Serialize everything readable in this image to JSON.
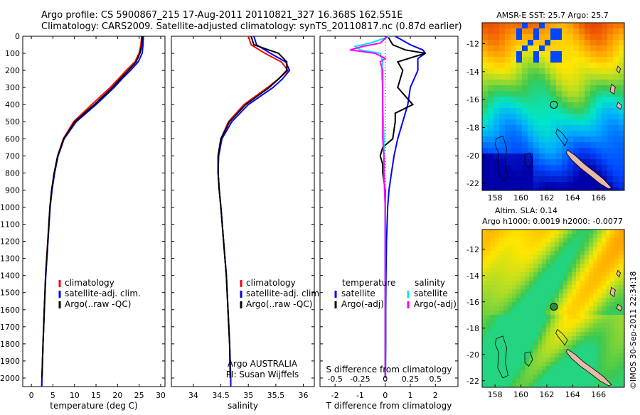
{
  "header": {
    "line1": "Argo profile: CS 5900867_215 17-Aug-2011 20110821_327 16.368S 162.551E",
    "line2": "Climatology: CARS2009. Satellite-adjusted climatology: synTS_20110817.nc (0.87d earlier)"
  },
  "chart_data": [
    {
      "type": "line",
      "name": "temperature-profile",
      "xlabel": "temperature (deg C)",
      "ylabel": "depth",
      "xlim": [
        -2,
        31
      ],
      "ylim": [
        2050,
        0
      ],
      "xticks": [
        0,
        5,
        10,
        15,
        20,
        25,
        30
      ],
      "yticks": [
        0,
        100,
        200,
        300,
        400,
        500,
        600,
        700,
        800,
        900,
        1000,
        1100,
        1200,
        1300,
        1400,
        1500,
        1600,
        1700,
        1800,
        1900,
        2000
      ],
      "legend": [
        "climatology",
        "satellite-adj. clim.",
        "Argo(..raw -QC)"
      ],
      "series": [
        {
          "name": "climatology",
          "color": "#ff0000",
          "depth": [
            0,
            50,
            100,
            150,
            200,
            250,
            300,
            400,
            500,
            600,
            700,
            800,
            900,
            1000,
            1200,
            1400,
            1600,
            1800,
            2000,
            2050
          ],
          "values": [
            25.6,
            25.4,
            25.0,
            24.0,
            22.0,
            20.2,
            18.3,
            14.0,
            9.8,
            7.4,
            6.1,
            5.3,
            4.7,
            4.3,
            3.8,
            3.3,
            3.0,
            2.7,
            2.45,
            2.4
          ]
        },
        {
          "name": "satellite-adj. clim.",
          "color": "#0000ff",
          "depth": [
            0,
            50,
            100,
            150,
            200,
            250,
            300,
            400,
            500,
            600,
            700,
            800,
            900,
            1000,
            1200,
            1400,
            1600,
            1800,
            2000,
            2050
          ],
          "values": [
            26.0,
            25.9,
            25.7,
            24.8,
            23.0,
            21.0,
            19.2,
            15.0,
            10.4,
            7.6,
            6.2,
            5.4,
            4.8,
            4.35,
            3.85,
            3.35,
            3.0,
            2.7,
            2.45,
            2.4
          ]
        },
        {
          "name": "Argo(..raw -QC)",
          "color": "#000000",
          "depth": [
            0,
            50,
            100,
            150,
            200,
            250,
            300,
            400,
            500,
            600,
            700,
            800,
            900,
            1000,
            1200,
            1400,
            1600,
            1800,
            2000
          ],
          "values": [
            25.7,
            25.6,
            25.2,
            24.3,
            22.5,
            20.6,
            18.8,
            14.6,
            10.1,
            7.5,
            6.1,
            5.3,
            4.7,
            4.3,
            3.8,
            3.3,
            3.0,
            2.7,
            2.45
          ]
        }
      ]
    },
    {
      "type": "line",
      "name": "salinity-profile",
      "xlabel": "salinity",
      "xlim": [
        33.6,
        36.2
      ],
      "ylim": [
        2050,
        0
      ],
      "xticks": [
        34,
        34.5,
        35,
        35.5,
        36
      ],
      "legend": [
        "climatology",
        "satellite-adj. clim.",
        "Argo(..raw -QC)"
      ],
      "annotation": [
        "Argo AUSTRALIA",
        "PI: Susan Wijffels"
      ],
      "series": [
        {
          "name": "climatology",
          "color": "#ff0000",
          "depth": [
            0,
            50,
            100,
            150,
            200,
            250,
            300,
            400,
            500,
            600,
            700,
            800,
            900,
            1000,
            1200,
            1400,
            1600,
            1800,
            2000,
            2050
          ],
          "values": [
            35.0,
            35.05,
            35.3,
            35.6,
            35.72,
            35.55,
            35.35,
            34.92,
            34.64,
            34.5,
            34.45,
            34.45,
            34.47,
            34.5,
            34.55,
            34.6,
            34.63,
            34.66,
            34.68,
            34.68
          ]
        },
        {
          "name": "satellite-adj. clim.",
          "color": "#0000ff",
          "depth": [
            0,
            50,
            100,
            150,
            200,
            250,
            300,
            400,
            500,
            600,
            700,
            800,
            900,
            1000,
            1200,
            1400,
            1600,
            1800,
            2000,
            2050
          ],
          "values": [
            35.1,
            35.15,
            35.4,
            35.68,
            35.75,
            35.62,
            35.45,
            35.0,
            34.7,
            34.52,
            34.46,
            34.45,
            34.47,
            34.5,
            34.55,
            34.6,
            34.63,
            34.66,
            34.68,
            34.68
          ]
        },
        {
          "name": "Argo(..raw -QC)",
          "color": "#000000",
          "depth": [
            0,
            50,
            100,
            150,
            200,
            250,
            300,
            400,
            500,
            600,
            700,
            800,
            900,
            1000,
            1200,
            1400,
            1600,
            1800,
            2000
          ],
          "values": [
            35.05,
            35.1,
            35.55,
            35.7,
            35.7,
            35.55,
            35.38,
            34.95,
            34.66,
            34.5,
            34.45,
            34.45,
            34.47,
            34.5,
            34.55,
            34.6,
            34.63,
            34.66,
            34.67
          ]
        }
      ]
    },
    {
      "type": "line",
      "name": "difference-profile",
      "xlabel": "T difference from climatology",
      "x2label": "S difference from climatology",
      "xlim": [
        -2.6,
        2.9
      ],
      "ylim": [
        2050,
        0
      ],
      "xticks": [
        -2,
        -1,
        0,
        1,
        2
      ],
      "x2ticks": [
        "-0.5",
        "-0.25",
        "0",
        "0.25",
        "0.5"
      ],
      "x2tick_positions": [
        -2,
        -1,
        0,
        1,
        2
      ],
      "legend_titles": [
        "temperature",
        "salinity"
      ],
      "legend": [
        "satellite",
        "Argo(-adj)",
        "satellite",
        "Argo(-adj)"
      ],
      "series": [
        {
          "name": "T satellite",
          "color": "#0000ff",
          "depth": [
            0,
            50,
            80,
            100,
            130,
            200,
            300,
            400,
            500,
            600,
            700,
            800,
            900,
            1000,
            1200,
            1400,
            1600,
            1800,
            2000
          ],
          "values": [
            0.4,
            1.0,
            1.5,
            1.6,
            1.3,
            1.3,
            1.0,
            0.9,
            0.7,
            0.5,
            0.35,
            0.25,
            0.15,
            0.1,
            0.05,
            0.03,
            0.02,
            0.02,
            0.01
          ]
        },
        {
          "name": "T Argo(-adj)",
          "color": "#000000",
          "depth": [
            0,
            50,
            80,
            100,
            150,
            200,
            300,
            350,
            400,
            450,
            500,
            600,
            650,
            700,
            750,
            800,
            900,
            1000,
            1200,
            1400,
            1600,
            1800,
            2000
          ],
          "values": [
            0.1,
            0.3,
            0.8,
            1.6,
            0.5,
            0.7,
            0.5,
            0.8,
            1.1,
            0.4,
            0.4,
            0.3,
            -0.1,
            -0.2,
            -0.1,
            -0.1,
            0.0,
            0.0,
            0.0,
            0.0,
            0.0,
            0.0,
            0.0
          ]
        },
        {
          "name": "S satellite",
          "color": "#00e5ee",
          "depth": [
            0,
            40,
            60,
            80,
            100,
            150,
            200,
            300,
            400,
            600,
            800,
            1000,
            1200,
            1400,
            1600,
            1800,
            2000
          ],
          "values": [
            0.2,
            -0.6,
            -1.2,
            -1.0,
            -0.2,
            -0.1,
            -0.15,
            -0.1,
            -0.1,
            -0.05,
            -0.05,
            0.0,
            0.0,
            0.0,
            0.0,
            0.0,
            0.0
          ]
        },
        {
          "name": "S Argo(-adj)",
          "color": "#ff00ff",
          "depth": [
            0,
            40,
            60,
            80,
            100,
            130,
            150,
            200,
            300,
            400,
            500,
            600,
            700,
            800,
            1000,
            1200,
            1400,
            1600,
            1800,
            2000
          ],
          "values": [
            0.1,
            -0.2,
            -0.9,
            -1.4,
            -0.4,
            0.0,
            -0.2,
            -0.1,
            -0.1,
            -0.1,
            -0.1,
            -0.1,
            -0.05,
            -0.05,
            0.0,
            0.0,
            0.0,
            0.0,
            0.0,
            0.0
          ]
        }
      ]
    },
    {
      "type": "heatmap",
      "name": "sst-map",
      "title": "AMSR-E SST: 25.7 Argo: 25.7",
      "xlim": [
        157,
        168
      ],
      "ylim": [
        -22.5,
        -10.5
      ],
      "xticks": [
        158,
        160,
        162,
        164,
        166
      ],
      "yticks": [
        -12,
        -14,
        -16,
        -18,
        -20,
        -22
      ],
      "argo_position": [
        162.55,
        -16.37
      ]
    },
    {
      "type": "heatmap",
      "name": "sla-map",
      "title1": "Altim. SLA: 0.14",
      "title2": "Argo h1000: 0.0019 h2000: -0.0077",
      "xlim": [
        157,
        168
      ],
      "ylim": [
        -22.5,
        -10.5
      ],
      "xticks": [
        158,
        160,
        162,
        164,
        166
      ],
      "yticks": [
        -12,
        -14,
        -16,
        -18,
        -20,
        -22
      ],
      "argo_position": [
        162.55,
        -16.37
      ]
    }
  ],
  "stamp": "©IMOS 30-Sep-2011 22:34:18",
  "colors": {
    "climatology": "#ff0000",
    "satellite": "#0000ff",
    "argo": "#000000",
    "s_satellite": "#00e5ee",
    "s_argo": "#ff00ff"
  }
}
